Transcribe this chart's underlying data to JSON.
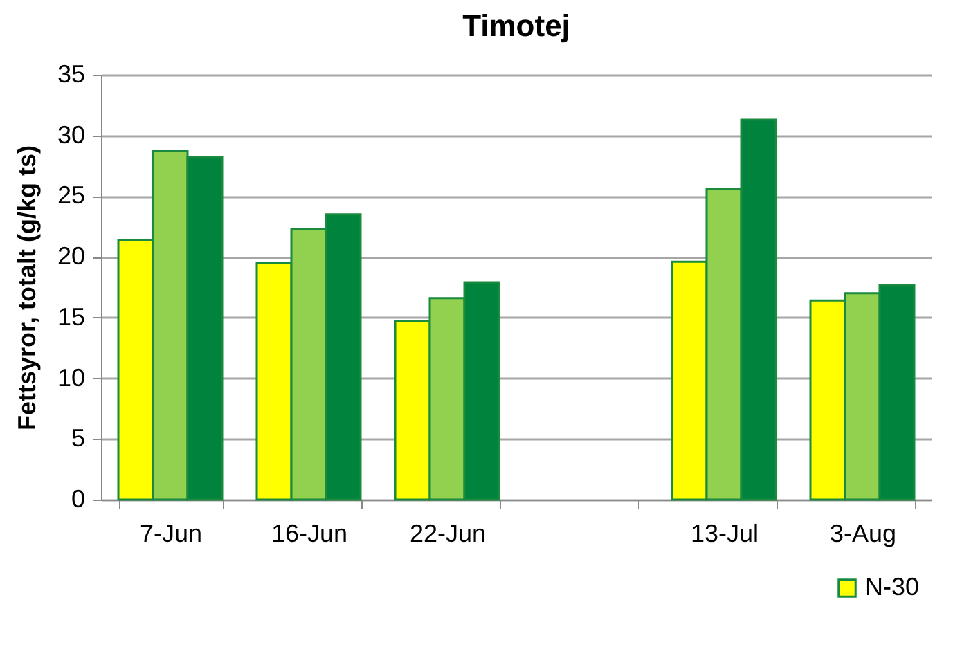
{
  "chart_data": {
    "type": "bar",
    "title": "Timotej",
    "ylabel": "Fettsyror, totalt (g/kg ts)",
    "categories": [
      "7-Jun",
      "16-Jun",
      "22-Jun",
      null,
      "13-Jul",
      "3-Aug"
    ],
    "series": [
      {
        "name": "N-30",
        "color": "#ffff00",
        "values": [
          21.4,
          19.5,
          14.7,
          null,
          19.6,
          16.4
        ]
      },
      {
        "color": "#92d050",
        "values": [
          28.7,
          22.3,
          16.6,
          null,
          25.6,
          17.0
        ]
      },
      {
        "color": "#00843d",
        "values": [
          28.2,
          23.5,
          17.9,
          null,
          31.3,
          17.7
        ]
      }
    ],
    "ylim": [
      0,
      35
    ],
    "yticks": [
      0,
      5,
      10,
      15,
      20,
      25,
      30,
      35
    ],
    "grid": "y",
    "legend": "bottom right"
  }
}
